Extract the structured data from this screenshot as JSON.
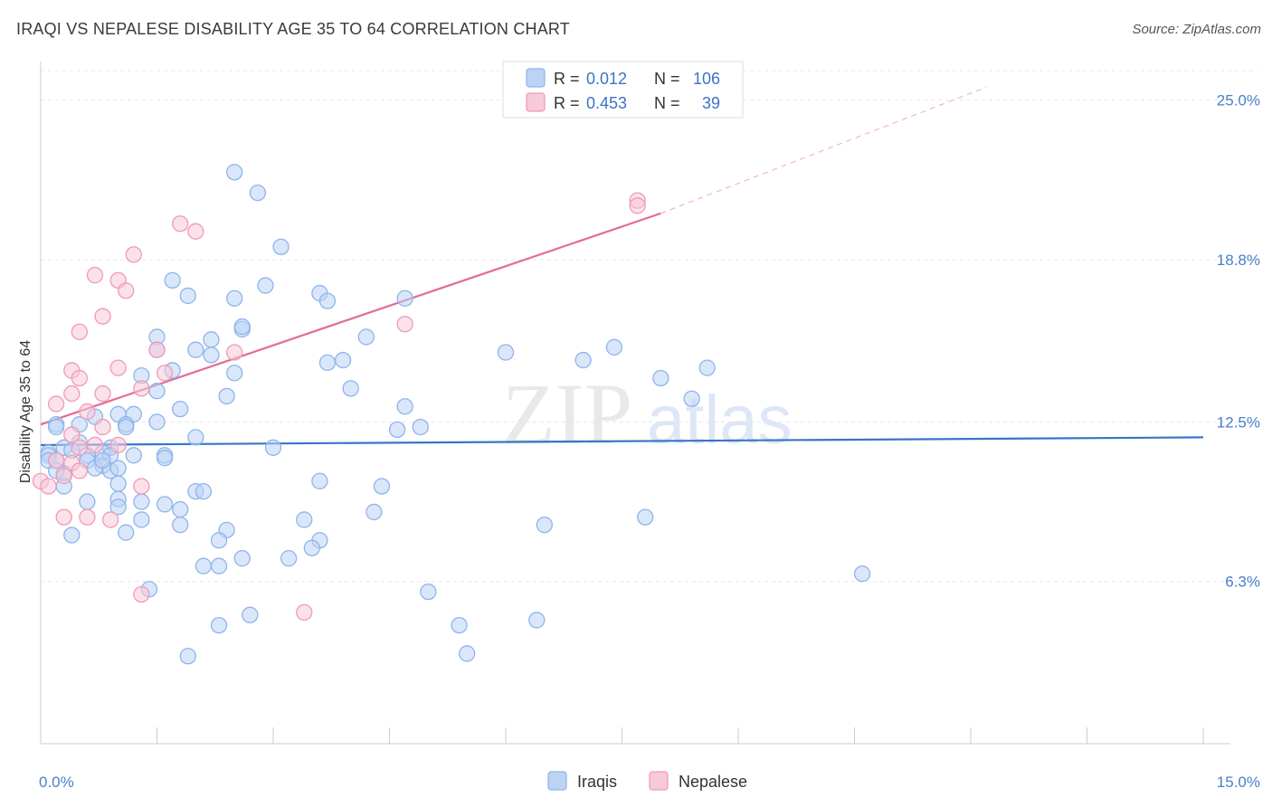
{
  "title": "IRAQI VS NEPALESE DISABILITY AGE 35 TO 64 CORRELATION CHART",
  "source": "Source: ZipAtlas.com",
  "watermark": {
    "zip": "ZIP",
    "atlas": "atlas"
  },
  "chart_data": {
    "type": "scatter",
    "ylabel": "Disability Age 35 to 64",
    "xlim": [
      0,
      15
    ],
    "ylim": [
      0,
      26.5
    ],
    "x_tick_labels": [
      "0.0%",
      "15.0%"
    ],
    "y_ticks": [
      6.3,
      12.5,
      18.8,
      25.0
    ],
    "y_tick_labels": [
      "6.3%",
      "12.5%",
      "18.8%",
      "25.0%"
    ],
    "legend": [
      {
        "name": "Iraqis",
        "r_label": "R =",
        "r": "0.012",
        "n_label": "N =",
        "n": "106",
        "color": "#8fb4ea",
        "fill": "#bcd3f5"
      },
      {
        "name": "Nepalese",
        "r_label": "R =",
        "r": "0.453",
        "n_label": "N =",
        "n": "39",
        "color": "#ef9ab6",
        "fill": "#f8c9d8"
      }
    ],
    "trend_lines": [
      {
        "series": "Iraqis",
        "x": [
          0.0,
          15.0
        ],
        "y": [
          11.6,
          11.9
        ],
        "color": "#3776c7"
      },
      {
        "series": "Nepalese",
        "x": [
          0.0,
          8.0
        ],
        "y": [
          12.4,
          20.6
        ],
        "color": "#e26c96",
        "dashed_to": [
          12.2,
          25.5
        ]
      }
    ],
    "series": [
      {
        "name": "Iraqis",
        "points": [
          [
            2.5,
            22.2
          ],
          [
            2.8,
            21.4
          ],
          [
            3.1,
            19.3
          ],
          [
            1.7,
            18.0
          ],
          [
            2.9,
            17.8
          ],
          [
            1.9,
            17.4
          ],
          [
            2.5,
            17.3
          ],
          [
            3.6,
            17.5
          ],
          [
            3.7,
            17.2
          ],
          [
            4.7,
            17.3
          ],
          [
            2.6,
            16.1
          ],
          [
            2.6,
            16.2
          ],
          [
            1.5,
            15.8
          ],
          [
            2.2,
            15.7
          ],
          [
            2.0,
            15.3
          ],
          [
            1.5,
            15.3
          ],
          [
            2.2,
            15.1
          ],
          [
            4.2,
            15.8
          ],
          [
            6.0,
            15.2
          ],
          [
            7.4,
            15.4
          ],
          [
            7.0,
            14.9
          ],
          [
            3.7,
            14.8
          ],
          [
            3.9,
            14.9
          ],
          [
            1.7,
            14.5
          ],
          [
            1.3,
            14.3
          ],
          [
            2.5,
            14.4
          ],
          [
            8.0,
            14.2
          ],
          [
            8.6,
            14.6
          ],
          [
            4.0,
            13.8
          ],
          [
            1.5,
            13.7
          ],
          [
            2.4,
            13.5
          ],
          [
            8.4,
            13.4
          ],
          [
            1.8,
            13.0
          ],
          [
            4.7,
            13.1
          ],
          [
            1.2,
            12.8
          ],
          [
            1.0,
            12.8
          ],
          [
            0.7,
            12.7
          ],
          [
            1.5,
            12.5
          ],
          [
            1.1,
            12.4
          ],
          [
            1.1,
            12.3
          ],
          [
            0.2,
            12.4
          ],
          [
            0.2,
            12.3
          ],
          [
            0.5,
            12.4
          ],
          [
            4.9,
            12.3
          ],
          [
            4.6,
            12.2
          ],
          [
            2.0,
            11.9
          ],
          [
            0.5,
            11.7
          ],
          [
            0.3,
            11.5
          ],
          [
            0.9,
            11.5
          ],
          [
            0.4,
            11.4
          ],
          [
            0.1,
            11.3
          ],
          [
            0.1,
            11.2
          ],
          [
            0.1,
            11.0
          ],
          [
            0.2,
            11.0
          ],
          [
            0.6,
            11.2
          ],
          [
            0.8,
            11.3
          ],
          [
            0.9,
            11.2
          ],
          [
            1.2,
            11.2
          ],
          [
            1.6,
            11.2
          ],
          [
            1.6,
            11.1
          ],
          [
            3.0,
            11.5
          ],
          [
            0.6,
            11.0
          ],
          [
            0.8,
            10.8
          ],
          [
            0.7,
            10.7
          ],
          [
            0.9,
            10.6
          ],
          [
            0.3,
            10.5
          ],
          [
            0.2,
            10.6
          ],
          [
            1.0,
            10.7
          ],
          [
            0.8,
            11.0
          ],
          [
            3.6,
            10.2
          ],
          [
            4.4,
            10.0
          ],
          [
            1.0,
            10.1
          ],
          [
            0.3,
            10.0
          ],
          [
            2.0,
            9.8
          ],
          [
            2.1,
            9.8
          ],
          [
            1.0,
            9.5
          ],
          [
            0.6,
            9.4
          ],
          [
            1.3,
            9.4
          ],
          [
            1.6,
            9.3
          ],
          [
            1.0,
            9.2
          ],
          [
            1.8,
            9.1
          ],
          [
            4.3,
            9.0
          ],
          [
            7.8,
            8.8
          ],
          [
            1.3,
            8.7
          ],
          [
            3.4,
            8.7
          ],
          [
            1.8,
            8.5
          ],
          [
            6.5,
            8.5
          ],
          [
            0.4,
            8.1
          ],
          [
            1.1,
            8.2
          ],
          [
            2.4,
            8.3
          ],
          [
            2.3,
            7.9
          ],
          [
            3.6,
            7.9
          ],
          [
            3.5,
            7.6
          ],
          [
            2.6,
            7.2
          ],
          [
            3.2,
            7.2
          ],
          [
            2.3,
            6.9
          ],
          [
            2.1,
            6.9
          ],
          [
            10.6,
            6.6
          ],
          [
            1.4,
            6.0
          ],
          [
            5.0,
            5.9
          ],
          [
            2.7,
            5.0
          ],
          [
            2.3,
            4.6
          ],
          [
            5.4,
            4.6
          ],
          [
            6.4,
            4.8
          ],
          [
            1.9,
            3.4
          ],
          [
            5.5,
            3.5
          ]
        ]
      },
      {
        "name": "Nepalese",
        "points": [
          [
            7.7,
            21.1
          ],
          [
            7.7,
            20.9
          ],
          [
            1.8,
            20.2
          ],
          [
            2.0,
            19.9
          ],
          [
            1.2,
            19.0
          ],
          [
            0.7,
            18.2
          ],
          [
            1.0,
            18.0
          ],
          [
            1.1,
            17.6
          ],
          [
            0.8,
            16.6
          ],
          [
            4.7,
            16.3
          ],
          [
            0.5,
            16.0
          ],
          [
            1.5,
            15.3
          ],
          [
            2.5,
            15.2
          ],
          [
            1.0,
            14.6
          ],
          [
            0.4,
            14.5
          ],
          [
            1.6,
            14.4
          ],
          [
            0.5,
            14.2
          ],
          [
            1.3,
            13.8
          ],
          [
            0.4,
            13.6
          ],
          [
            0.8,
            13.6
          ],
          [
            0.2,
            13.2
          ],
          [
            0.6,
            12.9
          ],
          [
            0.8,
            12.3
          ],
          [
            0.4,
            12.0
          ],
          [
            1.0,
            11.6
          ],
          [
            0.7,
            11.6
          ],
          [
            0.5,
            11.5
          ],
          [
            0.2,
            11.0
          ],
          [
            0.4,
            10.9
          ],
          [
            0.5,
            10.6
          ],
          [
            0.3,
            10.4
          ],
          [
            0.0,
            10.2
          ],
          [
            0.1,
            10.0
          ],
          [
            1.3,
            10.0
          ],
          [
            0.3,
            8.8
          ],
          [
            0.6,
            8.8
          ],
          [
            0.9,
            8.7
          ],
          [
            1.3,
            5.8
          ],
          [
            3.4,
            5.1
          ]
        ]
      }
    ]
  }
}
